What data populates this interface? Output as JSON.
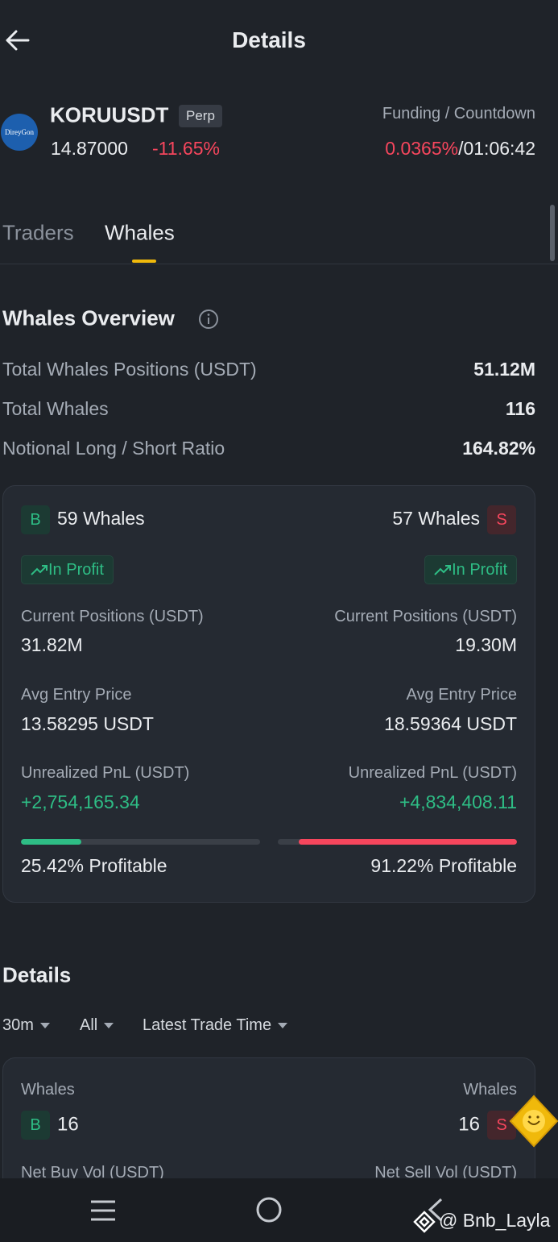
{
  "header": {
    "title": "Details"
  },
  "ticker": {
    "logo": "DireyGon",
    "symbol": "KORUUSDT",
    "tag": "Perp",
    "price": "14.87000",
    "change": "-11.65%",
    "funding_label": "Funding / Countdown",
    "funding_rate": "0.0365%",
    "separator": "/",
    "countdown": "01:06:42"
  },
  "tabs": [
    "Traders",
    "Whales"
  ],
  "overview": {
    "title": "Whales Overview",
    "rows": [
      [
        "Total Whales Positions (USDT)",
        "51.12M"
      ],
      [
        "Total Whales",
        "116"
      ],
      [
        "Notional Long / Short Ratio",
        "164.82%"
      ]
    ]
  },
  "long": {
    "badge": "B",
    "whales": "59 Whales",
    "status": "In Profit",
    "positions_label": "Current Positions (USDT)",
    "positions": "31.82M",
    "entry_label": "Avg Entry Price",
    "entry": "13.58295 USDT",
    "pnl_label": "Unrealized PnL (USDT)",
    "pnl": "+2,754,165.34",
    "profitable": {
      "value": 25.42,
      "label": "25.42% Profitable"
    }
  },
  "short": {
    "badge": "S",
    "whales": "57 Whales",
    "status": "In Profit",
    "positions_label": "Current Positions (USDT)",
    "positions": "19.30M",
    "entry_label": "Avg Entry Price",
    "entry": "18.59364 USDT",
    "pnl_label": "Unrealized PnL (USDT)",
    "pnl": "+4,834,408.11",
    "profitable": {
      "value": 91.22,
      "label": "91.22% Profitable"
    }
  },
  "details": {
    "title": "Details",
    "filters": [
      "30m",
      "All",
      "Latest Trade Time"
    ],
    "long": {
      "label": "Whales",
      "badge": "B",
      "count": "16",
      "next_label": "Net Buy Vol (USDT)"
    },
    "short": {
      "label": "Whales",
      "badge": "S",
      "count": "16",
      "next_label": "Net Sell Vol (USDT)"
    }
  },
  "watermark": "@ Bnb_Layla"
}
